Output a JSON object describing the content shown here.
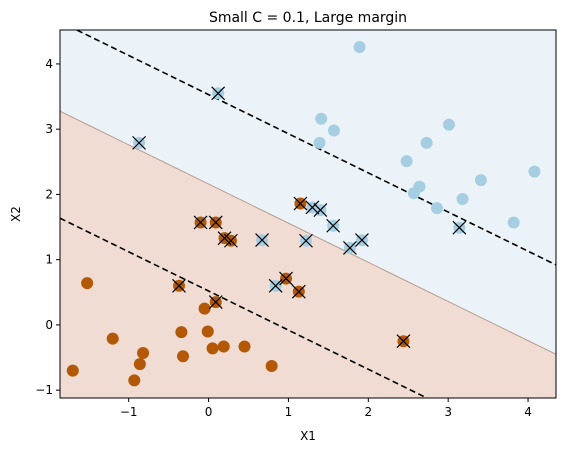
{
  "chart_data": {
    "type": "scatter",
    "title": "Small C = 0.1, Large margin",
    "xlabel": "X1",
    "ylabel": "X2",
    "xlim": [
      -1.86,
      4.35
    ],
    "ylim": [
      -1.12,
      4.52
    ],
    "xticks": [
      -1,
      0,
      1,
      2,
      3,
      4
    ],
    "yticks": [
      -1,
      0,
      1,
      2,
      3,
      4
    ],
    "grid": false,
    "legend": "none",
    "colors": {
      "class_0": "#b35806",
      "class_1": "#a6cee3",
      "region_0": "#f0dcd2",
      "region_1": "#ebf3f8",
      "boundary": "#b39a8e",
      "margin": "#000000",
      "support_vector_marker": "#000000"
    },
    "decision_boundary": {
      "slope": -0.6,
      "intercept": 2.16
    },
    "margins": [
      {
        "slope": -0.6,
        "intercept": 3.53
      },
      {
        "slope": -0.6,
        "intercept": 0.52
      }
    ],
    "series": [
      {
        "class": 0,
        "points": [
          [
            -1.52,
            0.64
          ],
          [
            -1.2,
            -0.21
          ],
          [
            -1.7,
            -0.7
          ],
          [
            -0.82,
            -0.43
          ],
          [
            -0.86,
            -0.6
          ],
          [
            -0.93,
            -0.85
          ],
          [
            -0.34,
            -0.11
          ],
          [
            -0.32,
            -0.48
          ],
          [
            -0.05,
            0.25
          ],
          [
            -0.01,
            -0.1
          ],
          [
            0.05,
            -0.36
          ],
          [
            0.19,
            -0.33
          ],
          [
            0.45,
            -0.33
          ],
          [
            0.79,
            -0.63
          ],
          [
            -0.37,
            0.6
          ],
          [
            0.09,
            0.35
          ],
          [
            0.97,
            0.71
          ],
          [
            1.13,
            0.51
          ],
          [
            -0.1,
            1.57
          ],
          [
            0.09,
            1.57
          ],
          [
            0.2,
            1.33
          ],
          [
            0.28,
            1.29
          ],
          [
            1.15,
            1.86
          ],
          [
            2.44,
            -0.25
          ]
        ]
      },
      {
        "class": 1,
        "points": [
          [
            1.89,
            4.26
          ],
          [
            1.41,
            3.16
          ],
          [
            1.39,
            2.79
          ],
          [
            1.57,
            2.98
          ],
          [
            3.01,
            3.07
          ],
          [
            2.73,
            2.79
          ],
          [
            2.48,
            2.51
          ],
          [
            2.64,
            2.12
          ],
          [
            2.57,
            2.02
          ],
          [
            3.18,
            1.93
          ],
          [
            3.41,
            2.22
          ],
          [
            4.08,
            2.35
          ],
          [
            2.86,
            1.79
          ],
          [
            3.82,
            1.57
          ],
          [
            0.12,
            3.55
          ],
          [
            -0.87,
            2.79
          ],
          [
            0.67,
            1.3
          ],
          [
            0.84,
            0.6
          ],
          [
            1.22,
            1.29
          ],
          [
            1.3,
            1.8
          ],
          [
            1.4,
            1.76
          ],
          [
            1.56,
            1.52
          ],
          [
            1.77,
            1.18
          ],
          [
            1.92,
            1.3
          ],
          [
            3.14,
            1.49
          ]
        ]
      }
    ],
    "support_vectors": [
      [
        0.12,
        3.55
      ],
      [
        -0.87,
        2.79
      ],
      [
        1.15,
        1.86
      ],
      [
        1.3,
        1.8
      ],
      [
        1.4,
        1.76
      ],
      [
        1.56,
        1.52
      ],
      [
        -0.1,
        1.57
      ],
      [
        0.09,
        1.57
      ],
      [
        0.2,
        1.33
      ],
      [
        0.28,
        1.29
      ],
      [
        0.67,
        1.3
      ],
      [
        1.22,
        1.29
      ],
      [
        1.77,
        1.18
      ],
      [
        1.92,
        1.3
      ],
      [
        3.14,
        1.49
      ],
      [
        -0.37,
        0.6
      ],
      [
        0.09,
        0.35
      ],
      [
        0.97,
        0.71
      ],
      [
        1.13,
        0.51
      ],
      [
        0.84,
        0.6
      ],
      [
        2.44,
        -0.25
      ]
    ]
  }
}
